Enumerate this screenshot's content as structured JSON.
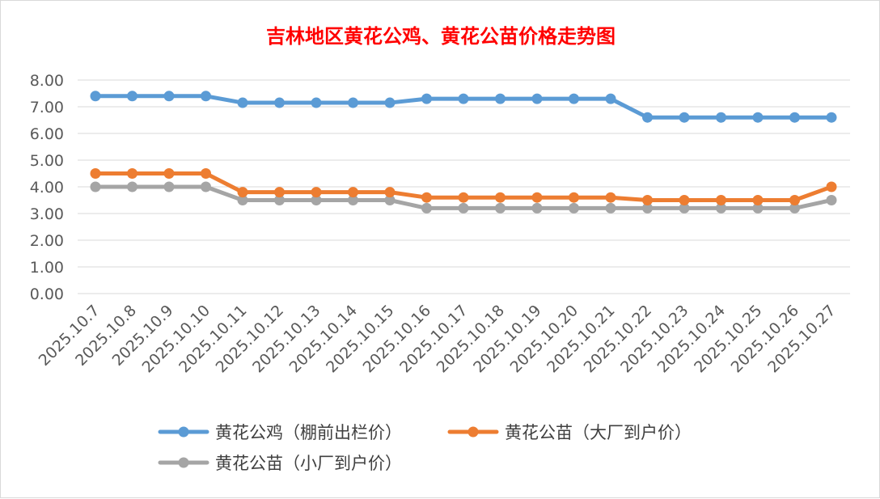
{
  "chart_data": {
    "type": "line",
    "title": "吉林地区黄花公鸡、黄花公苗价格走势图",
    "xlabel": "",
    "ylabel": "",
    "ylim": [
      0,
      8
    ],
    "yticks": [
      "0.00",
      "1.00",
      "2.00",
      "3.00",
      "4.00",
      "5.00",
      "6.00",
      "7.00",
      "8.00"
    ],
    "grid": true,
    "legend_position": "bottom",
    "categories": [
      "2025.10.7",
      "2025.10.8",
      "2025.10.9",
      "2025.10.10",
      "2025.10.11",
      "2025.10.12",
      "2025.10.13",
      "2025.10.14",
      "2025.10.15",
      "2025.10.16",
      "2025.10.17",
      "2025.10.18",
      "2025.10.19",
      "2025.10.20",
      "2025.10.21",
      "2025.10.22",
      "2025.10.23",
      "2025.10.24",
      "2025.10.25",
      "2025.10.26",
      "2025.10.27"
    ],
    "series": [
      {
        "name": "黄花公鸡（棚前出栏价）",
        "color": "#5b9bd5",
        "values": [
          7.4,
          7.4,
          7.4,
          7.4,
          7.15,
          7.15,
          7.15,
          7.15,
          7.15,
          7.3,
          7.3,
          7.3,
          7.3,
          7.3,
          7.3,
          6.6,
          6.6,
          6.6,
          6.6,
          6.6,
          6.6
        ]
      },
      {
        "name": "黄花公苗（大厂到户价）",
        "color": "#ed7d31",
        "values": [
          4.5,
          4.5,
          4.5,
          4.5,
          3.8,
          3.8,
          3.8,
          3.8,
          3.8,
          3.6,
          3.6,
          3.6,
          3.6,
          3.6,
          3.6,
          3.5,
          3.5,
          3.5,
          3.5,
          3.5,
          4.0
        ]
      },
      {
        "name": "黄花公苗（小厂到户价）",
        "color": "#a5a5a5",
        "values": [
          4.0,
          4.0,
          4.0,
          4.0,
          3.5,
          3.5,
          3.5,
          3.5,
          3.5,
          3.2,
          3.2,
          3.2,
          3.2,
          3.2,
          3.2,
          3.2,
          3.2,
          3.2,
          3.2,
          3.2,
          3.5
        ]
      }
    ]
  }
}
